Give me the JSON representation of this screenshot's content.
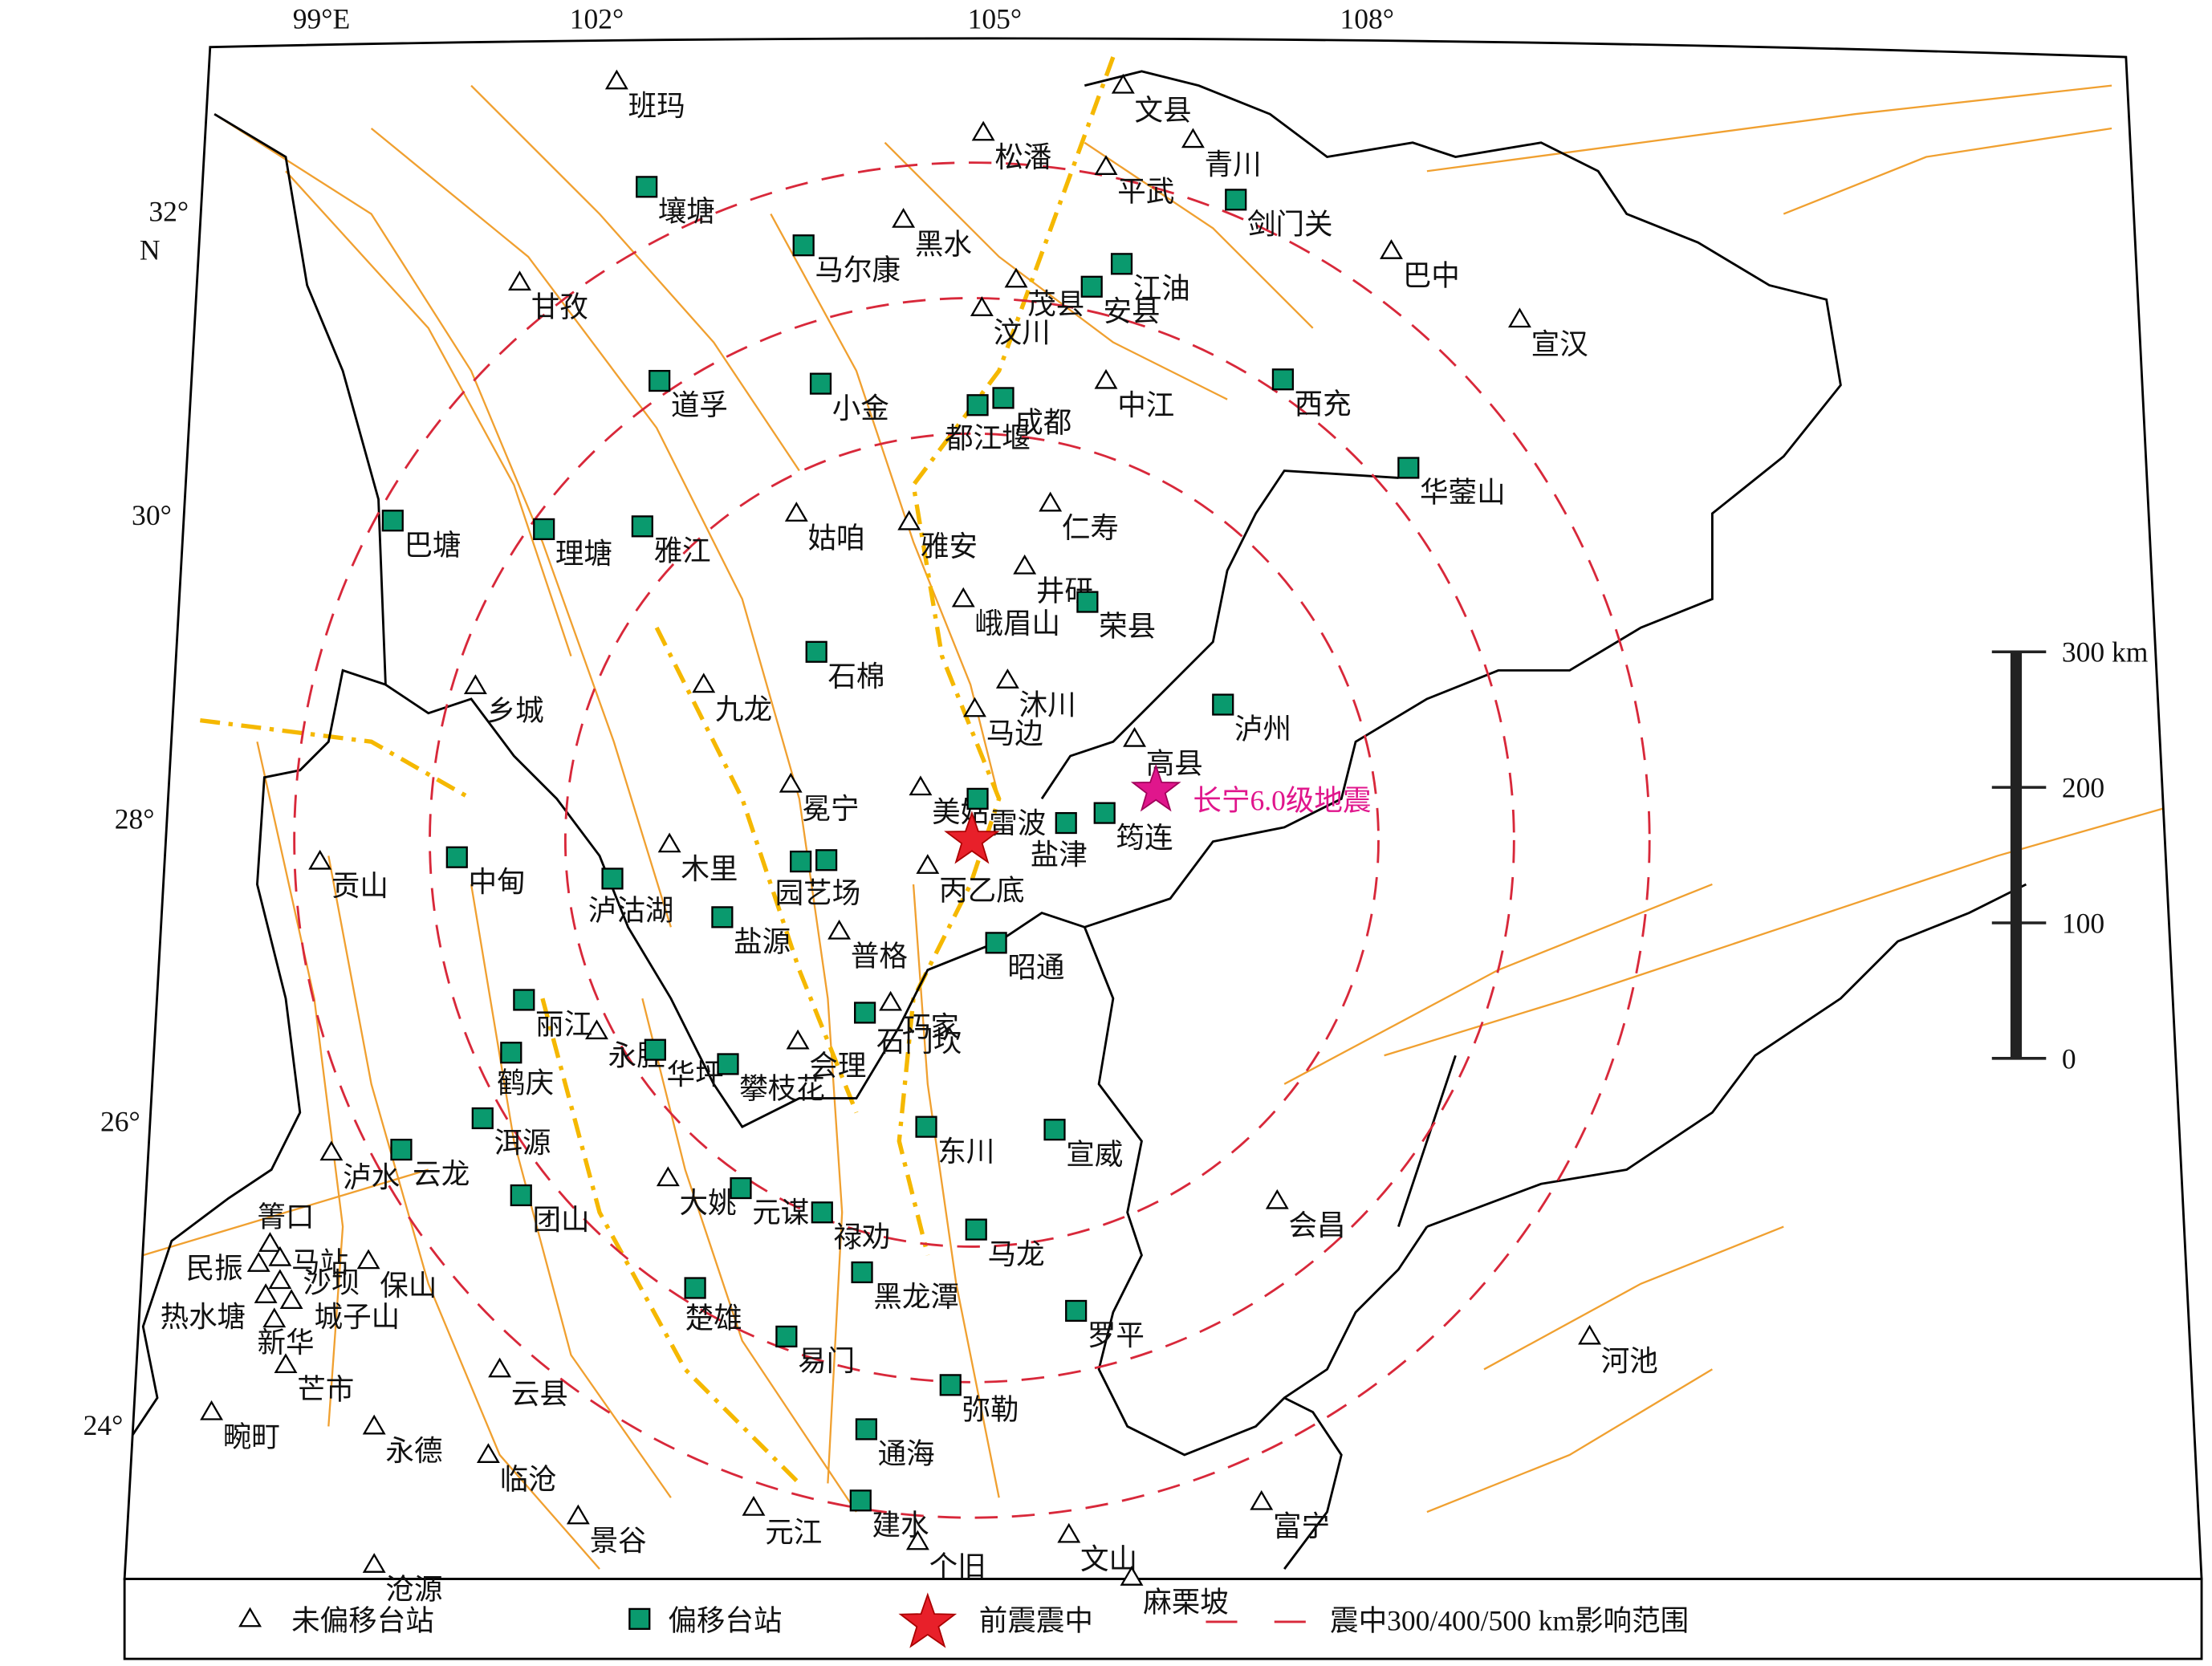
{
  "map": {
    "lon_labels": [
      "99°E",
      "102°",
      "105°",
      "108°"
    ],
    "lat_labels": [
      "32°",
      "30°",
      "28°",
      "26°",
      "24°"
    ],
    "north_label": "N",
    "stations_unshifted": [
      "班玛",
      "文县",
      "松潘",
      "青川",
      "平武",
      "黑水",
      "巴中",
      "甘孜",
      "茂县",
      "汶川",
      "宣汉",
      "中江",
      "姑咱",
      "雅安",
      "仁寿",
      "井研",
      "峨眉山",
      "乡城",
      "九龙",
      "沐川",
      "马边",
      "高县",
      "冕宁",
      "美姑",
      "贡山",
      "木里",
      "丙乙底",
      "普格",
      "巧家",
      "会理",
      "永胜",
      "泸水",
      "大姚",
      "保山",
      "箐口",
      "马站",
      "民振",
      "沙坝",
      "热水塘",
      "城子山",
      "新华",
      "芒市",
      "会昌",
      "河池",
      "云县",
      "畹町",
      "永德",
      "临沧",
      "景谷",
      "元江",
      "个旧",
      "文山",
      "富宁",
      "麻栗坡",
      "沧源"
    ],
    "stations_shifted": [
      "壤塘",
      "马尔康",
      "江油",
      "安县",
      "剑门关",
      "道孚",
      "小金",
      "都江堰",
      "成都",
      "西充",
      "华蓥山",
      "巴塘",
      "理塘",
      "雅江",
      "荣县",
      "石棉",
      "泸州",
      "雷波",
      "盐津",
      "筠连",
      "中甸",
      "泸沽湖",
      "园艺场",
      "盐源",
      "昭通",
      "丽江",
      "鹤庆",
      "华坪",
      "攀枝花",
      "石门坎",
      "洱源",
      "云龙",
      "东川",
      "宣威",
      "团山",
      "元谋",
      "禄劝",
      "马龙",
      "黑龙潭",
      "楚雄",
      "罗平",
      "易门",
      "弥勒",
      "通海",
      "建水"
    ],
    "epicenter_label": "长宁6.0级地震",
    "scale_bar": {
      "ticks": [
        {
          "value": 300,
          "label": "300 km"
        },
        200,
        100,
        0
      ]
    },
    "legend": {
      "unshifted": "未偏移台站",
      "shifted": "偏移台站",
      "epicenter": "前震震中",
      "range": "震中300/400/500 km影响范围"
    }
  }
}
